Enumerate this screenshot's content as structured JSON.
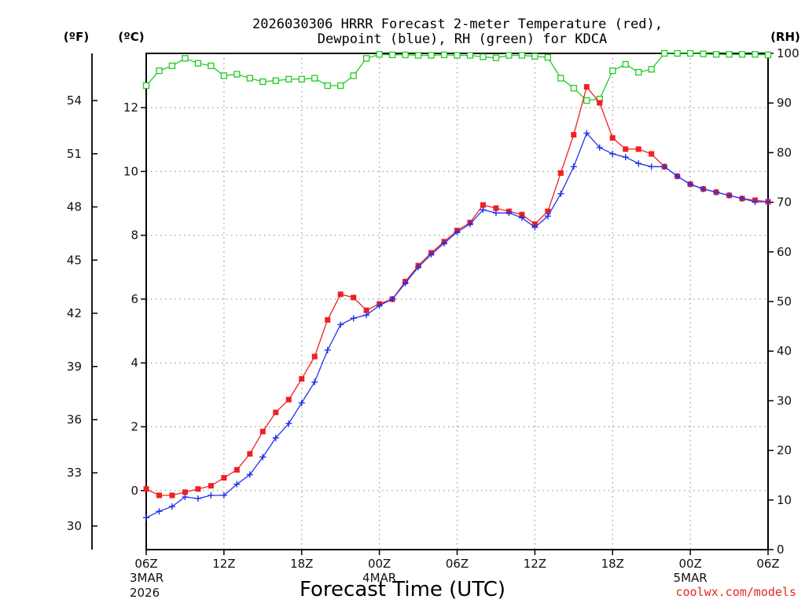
{
  "chart_data": {
    "type": "line",
    "title_line1": "2026030306 HRRR Forecast 2-meter Temperature (red),",
    "title_line2": "Dewpoint (blue), RH (green) for KDCA",
    "xlabel": "Forecast Time (UTC)",
    "credit": "coolwx.com/models",
    "unit_f": "(ºF)",
    "unit_c": "(ºC)",
    "unit_rh": "(RH)",
    "x_range_hours": [
      0,
      48
    ],
    "ylim_c": [
      -1.85,
      13.7
    ],
    "ylim_rh": [
      0,
      100
    ],
    "x_ticks": [
      {
        "h": 0,
        "l1": "06Z",
        "l2": "3MAR",
        "l3": "2026"
      },
      {
        "h": 6,
        "l1": "12Z",
        "l2": "",
        "l3": ""
      },
      {
        "h": 12,
        "l1": "18Z",
        "l2": "",
        "l3": ""
      },
      {
        "h": 18,
        "l1": "00Z",
        "l2": "4MAR",
        "l3": ""
      },
      {
        "h": 24,
        "l1": "06Z",
        "l2": "",
        "l3": ""
      },
      {
        "h": 30,
        "l1": "12Z",
        "l2": "",
        "l3": ""
      },
      {
        "h": 36,
        "l1": "18Z",
        "l2": "",
        "l3": ""
      },
      {
        "h": 42,
        "l1": "00Z",
        "l2": "5MAR",
        "l3": ""
      },
      {
        "h": 48,
        "l1": "06Z",
        "l2": "",
        "l3": ""
      }
    ],
    "y_ticks_c": [
      "0",
      "2",
      "4",
      "6",
      "8",
      "10",
      "12"
    ],
    "y_ticks_f": [
      "30",
      "33",
      "36",
      "39",
      "42",
      "45",
      "48",
      "51",
      "54"
    ],
    "y_ticks_rh": [
      "0",
      "10",
      "20",
      "30",
      "40",
      "50",
      "60",
      "70",
      "80",
      "90",
      "100"
    ],
    "series": [
      {
        "name": "Temperature",
        "color": "#ee2020",
        "marker": "filled-square",
        "values": [
          0.05,
          -0.15,
          -0.15,
          -0.05,
          0.05,
          0.15,
          0.4,
          0.65,
          1.15,
          1.85,
          2.45,
          2.85,
          3.5,
          4.2,
          5.35,
          6.15,
          6.05,
          5.65,
          5.85,
          6.0,
          6.55,
          7.05,
          7.45,
          7.8,
          8.15,
          8.4,
          8.95,
          8.85,
          8.75,
          8.65,
          8.35,
          8.75,
          9.95,
          11.15,
          12.65,
          12.15,
          11.05,
          10.7,
          10.7,
          10.55,
          10.15,
          9.85,
          9.6,
          9.45,
          9.35,
          9.25,
          9.15,
          9.1,
          9.05
        ]
      },
      {
        "name": "Dewpoint",
        "color": "#2030ee",
        "marker": "plus",
        "values": [
          -0.85,
          -0.65,
          -0.5,
          -0.2,
          -0.25,
          -0.15,
          -0.15,
          0.2,
          0.5,
          1.05,
          1.65,
          2.1,
          2.75,
          3.4,
          4.4,
          5.2,
          5.4,
          5.5,
          5.8,
          6.0,
          6.5,
          7.0,
          7.4,
          7.75,
          8.1,
          8.35,
          8.8,
          8.7,
          8.7,
          8.55,
          8.25,
          8.6,
          9.3,
          10.15,
          11.2,
          10.75,
          10.55,
          10.45,
          10.25,
          10.15,
          10.15,
          9.85,
          9.6,
          9.45,
          9.35,
          9.25,
          9.15,
          9.05,
          9.05
        ]
      },
      {
        "name": "RH",
        "color": "#20cc20",
        "marker": "open-square",
        "values": [
          93.5,
          96.5,
          97.5,
          99.0,
          98.0,
          97.5,
          95.5,
          95.8,
          95.0,
          94.3,
          94.5,
          94.8,
          94.8,
          95.0,
          93.5,
          93.5,
          95.5,
          99.0,
          99.8,
          99.7,
          99.7,
          99.6,
          99.6,
          99.7,
          99.6,
          99.6,
          99.3,
          99.1,
          99.6,
          99.6,
          99.4,
          99.2,
          95.0,
          93.0,
          90.5,
          90.8,
          96.5,
          97.8,
          96.2,
          96.8,
          100.0,
          100.0,
          100.0,
          99.9,
          99.8,
          99.8,
          99.8,
          99.8,
          99.7
        ]
      }
    ]
  }
}
